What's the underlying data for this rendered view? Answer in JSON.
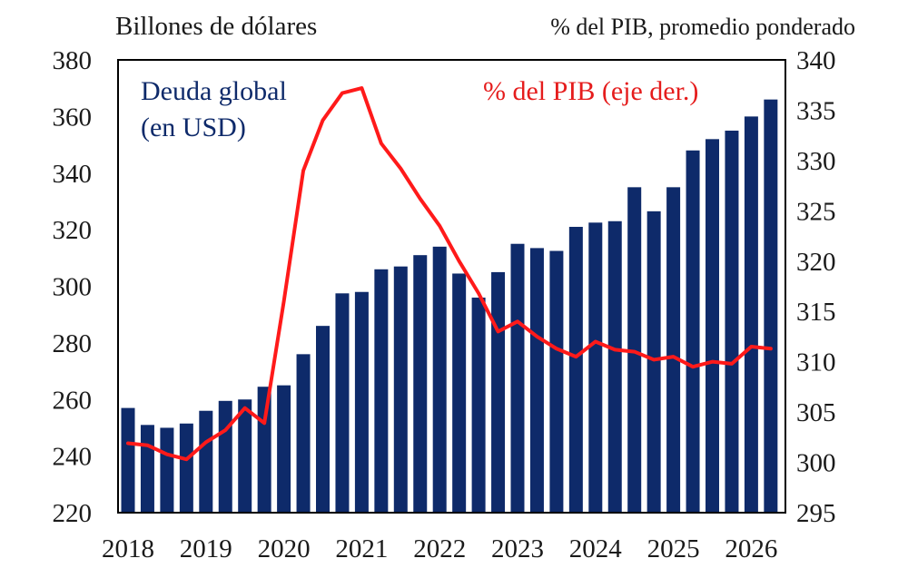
{
  "chart_data": {
    "type": "bar",
    "left_axis_title": "Billones de dólares",
    "right_axis_title": "% del PIB, promedio ponderado",
    "x_tick_labels": [
      "2018",
      "2019",
      "2020",
      "2021",
      "2022",
      "2023",
      "2024",
      "2025",
      "2026"
    ],
    "left_ticks": [
      "380",
      "360",
      "340",
      "320",
      "300",
      "280",
      "260",
      "240",
      "220"
    ],
    "right_ticks": [
      "340",
      "335",
      "330",
      "325",
      "320",
      "315",
      "310",
      "305",
      "300",
      "295"
    ],
    "ylim_left": [
      220,
      380
    ],
    "ylim_right": [
      295,
      340
    ],
    "grid": false,
    "colors": {
      "bars": "#0e2a6a",
      "line": "#ff1a1a",
      "text": "#1a1a1a",
      "bar_label": "#0e2a6a",
      "line_label": "#e51c1c"
    },
    "series": [
      {
        "name": "Deuda global\n(en USD)",
        "axis": "left",
        "type": "bar",
        "values": [
          257,
          251,
          250,
          251.5,
          256,
          259.5,
          260,
          264.5,
          265,
          276,
          286,
          297.5,
          298,
          306,
          307,
          311,
          314,
          304.5,
          296,
          305,
          315,
          313.5,
          312.5,
          321,
          322.5,
          323,
          335,
          326.5,
          335,
          348,
          352,
          355,
          360,
          366
        ]
      },
      {
        "name": "% del PIB (eje der.)",
        "axis": "right",
        "type": "line",
        "values": [
          301.9,
          301.7,
          300.8,
          300.3,
          302,
          303.2,
          305.4,
          303.9,
          316,
          329,
          334,
          336.7,
          337.2,
          331.7,
          329.2,
          326.2,
          323.5,
          320,
          316.8,
          313,
          314,
          312.5,
          311.3,
          310.5,
          312,
          311.2,
          311,
          310.2,
          310.5,
          309.5,
          310,
          309.8,
          311.5,
          311.3
        ]
      }
    ]
  }
}
